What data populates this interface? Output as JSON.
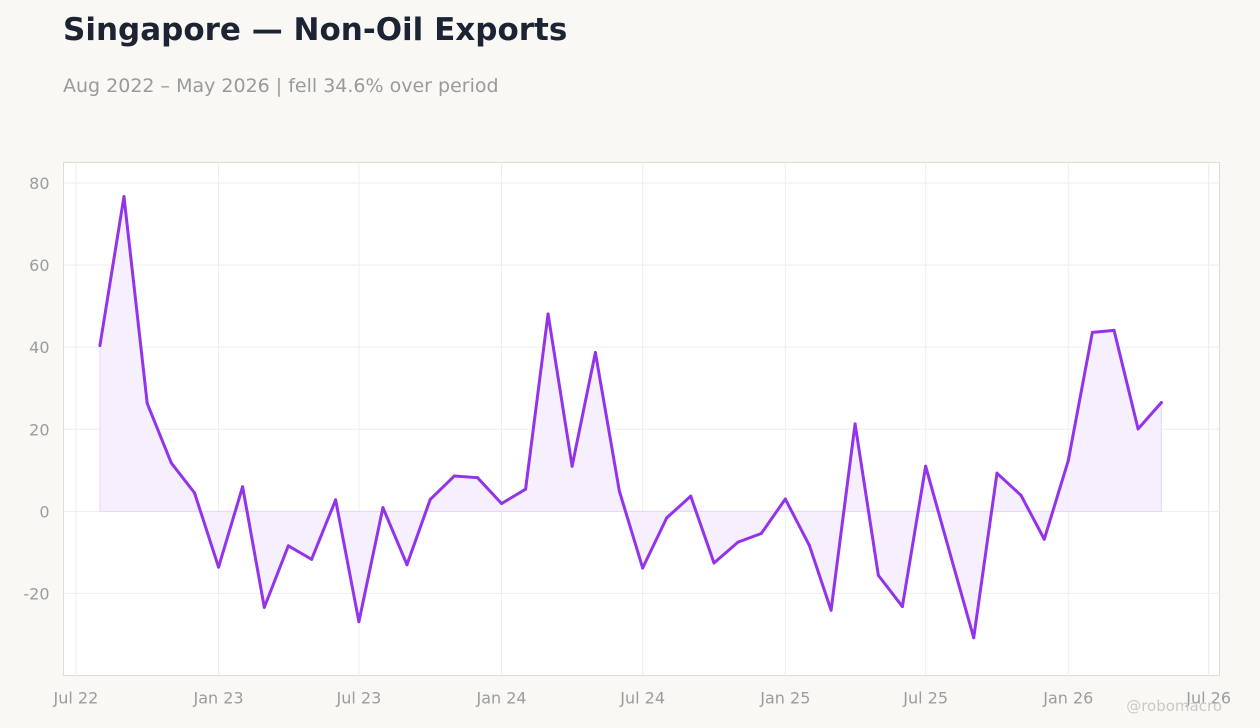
{
  "title": "Singapore — Non-Oil Exports",
  "subtitle": "Aug 2022 – May 2026 | fell 34.6% over period",
  "watermark": "@robomacro",
  "colors": {
    "line": "#9333ea",
    "fill": "#f4ecfd",
    "grid": "#eeeeee",
    "frame": "#dedcd5",
    "background": "#f9f8f5"
  },
  "chart_data": {
    "type": "area",
    "title": "Singapore — Non-Oil Exports",
    "subtitle": "Aug 2022 – May 2026 | fell 34.6% over period",
    "xlabel": "",
    "ylabel": "",
    "ylim": [
      -40,
      85
    ],
    "yticks": [
      80,
      60,
      40,
      20,
      0,
      -20
    ],
    "ytick_labels": [
      "80",
      "60",
      "40",
      "20",
      "0",
      "-20"
    ],
    "xlim": [
      "2022-06-15",
      "2026-07-15"
    ],
    "xticks": [
      {
        "date": "2022-07-01",
        "label": "Jul 22"
      },
      {
        "date": "2023-01-01",
        "label": "Jan 23"
      },
      {
        "date": "2023-07-01",
        "label": "Jul 23"
      },
      {
        "date": "2024-01-01",
        "label": "Jan 24"
      },
      {
        "date": "2024-07-01",
        "label": "Jul 24"
      },
      {
        "date": "2025-01-01",
        "label": "Jan 25"
      },
      {
        "date": "2025-07-01",
        "label": "Jul 25"
      },
      {
        "date": "2026-01-01",
        "label": "Jan 26"
      },
      {
        "date": "2026-07-01",
        "label": "Jul 26"
      }
    ],
    "grid": true,
    "legend": "none",
    "series": [
      {
        "x": [
          "2022-08-01",
          "2022-09-01",
          "2022-10-01",
          "2022-11-01",
          "2022-12-01",
          "2023-01-01",
          "2023-02-01",
          "2023-03-01",
          "2023-04-01",
          "2023-05-01",
          "2023-06-01",
          "2023-07-01",
          "2023-08-01",
          "2023-09-01",
          "2023-10-01",
          "2023-11-01",
          "2023-12-01",
          "2024-01-01",
          "2024-02-01",
          "2024-03-01",
          "2024-04-01",
          "2024-05-01",
          "2024-06-01",
          "2024-07-01",
          "2024-08-01",
          "2024-09-01",
          "2024-10-01",
          "2024-11-01",
          "2024-12-01",
          "2025-01-01",
          "2025-02-01",
          "2025-03-01",
          "2025-04-01",
          "2025-05-01",
          "2025-06-01",
          "2025-07-01",
          "2025-08-01",
          "2025-09-01",
          "2025-10-01",
          "2025-11-01",
          "2025-12-01",
          "2026-01-01",
          "2026-02-01",
          "2026-03-01",
          "2026-04-01",
          "2026-05-01"
        ],
        "values": [
          40.4,
          76.7,
          26.3,
          11.8,
          4.5,
          -13.6,
          6.0,
          -23.4,
          -8.4,
          -11.7,
          2.8,
          -26.9,
          0.9,
          -13.0,
          2.9,
          8.6,
          8.2,
          1.9,
          5.4,
          48.1,
          11.0,
          38.7,
          4.9,
          -13.8,
          -1.6,
          3.7,
          -12.6,
          -7.5,
          -5.4,
          3.0,
          -8.3,
          -24.1,
          21.3,
          -15.6,
          -23.2,
          11.0,
          -10.0,
          -30.8,
          9.3,
          3.9,
          -6.8,
          12.4,
          43.6,
          44.1,
          20.1,
          26.5
        ]
      }
    ]
  }
}
